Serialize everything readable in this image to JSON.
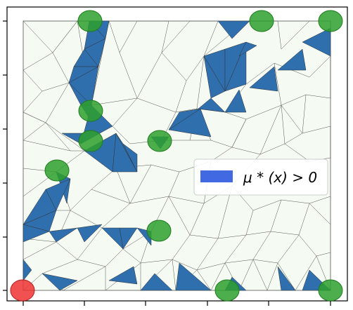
{
  "legend": {
    "label": "μ * (x) > 0",
    "swatch_color": "#4169e1"
  },
  "colors": {
    "mesh_fill": "#f5fbf2",
    "region_fill": "#2f6fae",
    "edge": "#333333",
    "green_marker": "#2ea02e",
    "red_marker": "#ee3333"
  },
  "markers": {
    "green_count": 11,
    "red_count": 1
  }
}
